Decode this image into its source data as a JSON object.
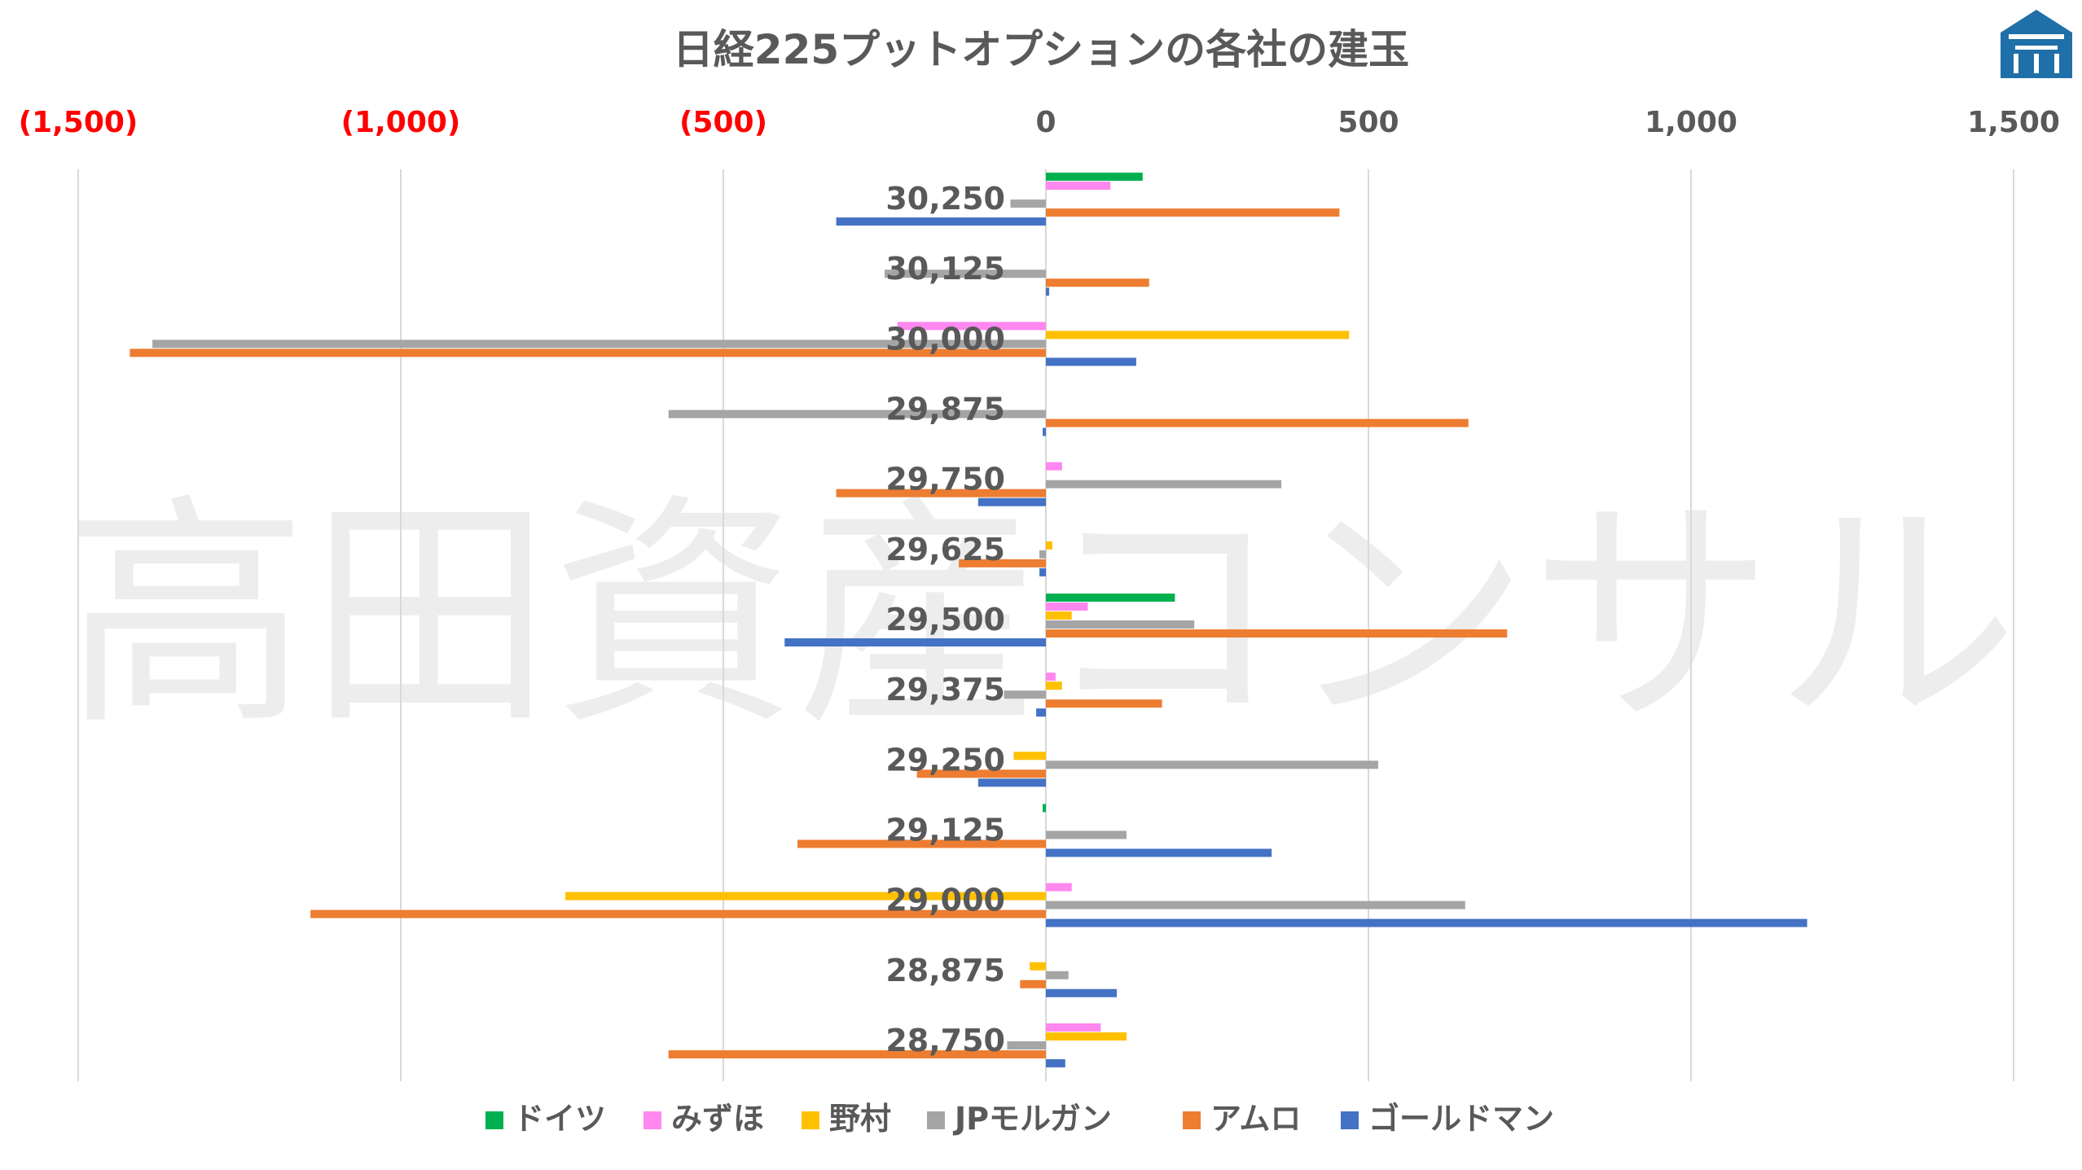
{
  "chart_data": {
    "type": "bar",
    "orientation": "horizontal",
    "title": "日経225プットオプションの各社の建玉",
    "watermark": "高田資産コンサル",
    "xlim": [
      -1500,
      1500
    ],
    "xticks": [
      {
        "value": -1500,
        "label": "(1,500)"
      },
      {
        "value": -1000,
        "label": "(1,000)"
      },
      {
        "value": -500,
        "label": "(500)"
      },
      {
        "value": 0,
        "label": "0"
      },
      {
        "value": 500,
        "label": "500"
      },
      {
        "value": 1000,
        "label": "1,000"
      },
      {
        "value": 1500,
        "label": "1,500"
      }
    ],
    "tick_colors": {
      "negative": "#ff0000",
      "nonnegative": "#595959"
    },
    "grid": true,
    "legend_position": "bottom",
    "categories": [
      "30,250",
      "30,125",
      "30,000",
      "29,875",
      "29,750",
      "29,625",
      "29,500",
      "29,375",
      "29,250",
      "29,125",
      "29,000",
      "28,875",
      "28,750"
    ],
    "series": [
      {
        "name": "ドイツ",
        "color": "#00b050",
        "values": [
          150,
          0,
          0,
          0,
          0,
          0,
          200,
          0,
          0,
          -5,
          0,
          0,
          0
        ]
      },
      {
        "name": "みずほ",
        "color": "#ff87f0",
        "values": [
          100,
          0,
          -230,
          0,
          25,
          0,
          65,
          15,
          0,
          0,
          40,
          0,
          85
        ]
      },
      {
        "name": "野村",
        "color": "#ffc000",
        "values": [
          0,
          0,
          470,
          0,
          0,
          10,
          40,
          25,
          -50,
          0,
          -745,
          -25,
          125
        ]
      },
      {
        "name": "JPモルガン",
        "color": "#a5a5a5",
        "values": [
          -55,
          -250,
          -1385,
          -585,
          365,
          -10,
          230,
          -65,
          515,
          125,
          650,
          35,
          -60
        ]
      },
      {
        "name": "アムロ",
        "color": "#ed7d31",
        "values": [
          455,
          160,
          -1420,
          655,
          -325,
          -135,
          715,
          180,
          -200,
          -385,
          -1140,
          -40,
          -585
        ]
      },
      {
        "name": "ゴールドマン",
        "color": "#4472c4",
        "values": [
          -325,
          5,
          140,
          -5,
          -105,
          -10,
          -405,
          -15,
          -105,
          350,
          1180,
          110,
          30
        ]
      }
    ]
  },
  "logo": {
    "icon": "building-icon",
    "color": "#1f6fa8"
  }
}
